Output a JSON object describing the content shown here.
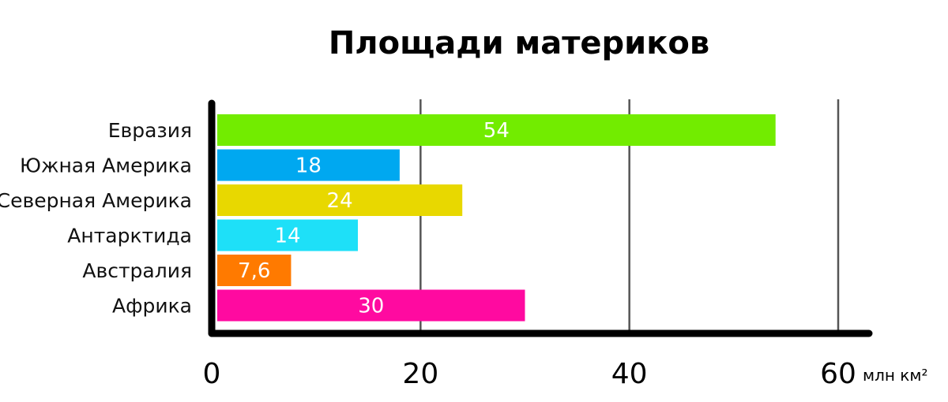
{
  "chart_data": {
    "type": "bar",
    "orientation": "horizontal",
    "title": "Площади материков",
    "unit": "млн км²",
    "categories": [
      "Евразия",
      "Южная Америка",
      "Северная Америка",
      "Антарктида",
      "Австралия",
      "Африка"
    ],
    "values": [
      54,
      18,
      24,
      14,
      7.6,
      30
    ],
    "value_labels": [
      "54",
      "18",
      "24",
      "14",
      "7,6",
      "30"
    ],
    "colors": [
      "#72ec00",
      "#00a8f0",
      "#e8d800",
      "#1ee0f8",
      "#ff7a00",
      "#ff0aa0"
    ],
    "xlim": [
      0,
      60
    ],
    "xticks": [
      0,
      20,
      40,
      60
    ],
    "xtick_labels": [
      "0",
      "20",
      "40",
      "60"
    ],
    "grid": true
  }
}
